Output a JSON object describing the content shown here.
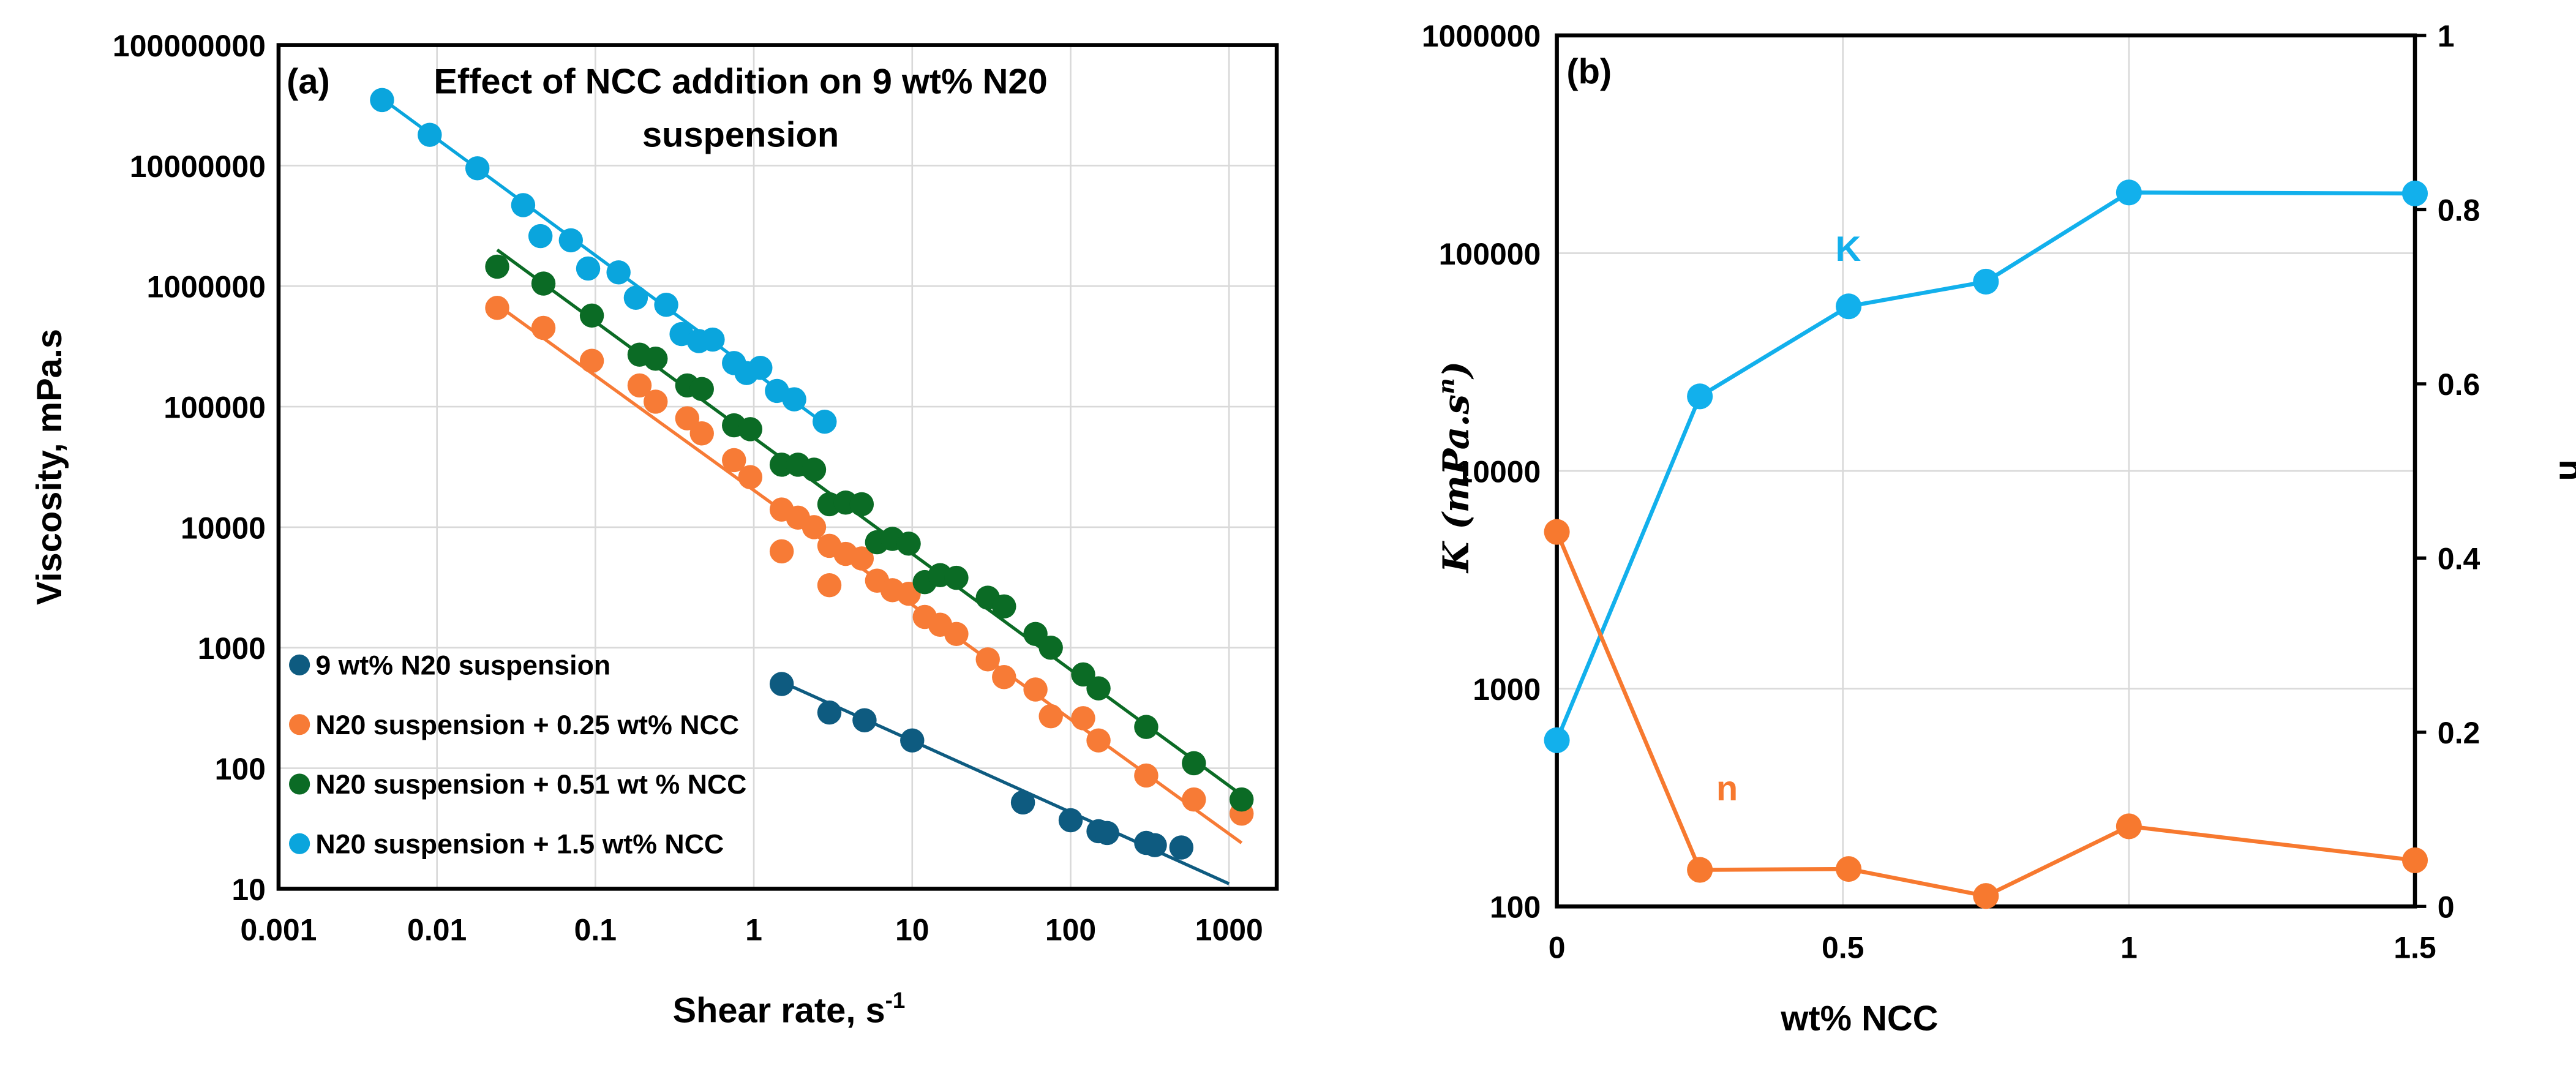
{
  "chart_data": [
    {
      "type": "scatter",
      "panel_label": "(a)",
      "title": "Effect of NCC addition on 9 wt% N20 suspension",
      "title_lines": [
        "Effect of NCC addition on 9 wt% N20",
        "suspension"
      ],
      "xlabel": "Shear rate, s",
      "xlabel_sup": "-1",
      "ylabel": "Viscosity, mPa.s",
      "xscale": "log",
      "yscale": "log",
      "xlim": [
        0.001,
        2000
      ],
      "ylim": [
        10,
        100000000
      ],
      "xticks": [
        "0.001",
        "0.01",
        "0.1",
        "1",
        "10",
        "100",
        "1000"
      ],
      "yticks": [
        "10",
        "100",
        "1000",
        "10000",
        "100000",
        "1000000",
        "10000000",
        "100000000"
      ],
      "grid": true,
      "legend": "bottom-left",
      "series": [
        {
          "name": "9 wt% N20 suspension",
          "color": "#0e5b80",
          "points": [
            [
              1.5,
              500
            ],
            [
              3,
              290
            ],
            [
              5,
              250
            ],
            [
              10,
              170
            ],
            [
              50,
              52
            ],
            [
              100,
              37
            ],
            [
              150,
              30
            ],
            [
              170,
              29
            ],
            [
              300,
              24
            ],
            [
              340,
              23
            ],
            [
              500,
              22
            ]
          ],
          "fit": [
            [
              1.5,
              520
            ],
            [
              1000,
              11
            ]
          ]
        },
        {
          "name": "N20 suspension + 0.25 wt% NCC",
          "color": "#f77b36",
          "points": [
            [
              0.024,
              660000
            ],
            [
              0.047,
              450000
            ],
            [
              0.095,
              240000
            ],
            [
              0.19,
              150000
            ],
            [
              0.24,
              110000
            ],
            [
              0.38,
              80000
            ],
            [
              0.47,
              60000
            ],
            [
              0.75,
              36000
            ],
            [
              0.95,
              26000
            ],
            [
              1.5,
              14000
            ],
            [
              1.5,
              6300
            ],
            [
              1.9,
              12000
            ],
            [
              2.4,
              10000
            ],
            [
              3,
              7000
            ],
            [
              3,
              3300
            ],
            [
              3.8,
              6000
            ],
            [
              4.8,
              5500
            ],
            [
              6,
              3600
            ],
            [
              7.5,
              3000
            ],
            [
              9.5,
              2800
            ],
            [
              12,
              1800
            ],
            [
              15,
              1550
            ],
            [
              19,
              1300
            ],
            [
              30,
              800
            ],
            [
              38,
              570
            ],
            [
              60,
              450
            ],
            [
              75,
              270
            ],
            [
              120,
              260
            ],
            [
              150,
              170
            ],
            [
              300,
              87
            ],
            [
              600,
              55
            ],
            [
              1200,
              42
            ]
          ],
          "fit": [
            [
              0.024,
              700000
            ],
            [
              1200,
              24
            ]
          ]
        },
        {
          "name": "N20 suspension + 0.51 wt % NCC",
          "color": "#0b6b25",
          "points": [
            [
              0.024,
              1450000
            ],
            [
              0.047,
              1050000
            ],
            [
              0.095,
              570000
            ],
            [
              0.19,
              270000
            ],
            [
              0.24,
              250000
            ],
            [
              0.38,
              150000
            ],
            [
              0.47,
              140000
            ],
            [
              0.75,
              70000
            ],
            [
              0.95,
              65000
            ],
            [
              1.5,
              33000
            ],
            [
              1.9,
              33000
            ],
            [
              2.4,
              30000
            ],
            [
              3,
              15500
            ],
            [
              3.8,
              16000
            ],
            [
              4.8,
              15500
            ],
            [
              6,
              7500
            ],
            [
              7.5,
              8000
            ],
            [
              9.5,
              7300
            ],
            [
              12,
              3500
            ],
            [
              15,
              4000
            ],
            [
              19,
              3800
            ],
            [
              30,
              2600
            ],
            [
              38,
              2200
            ],
            [
              60,
              1300
            ],
            [
              75,
              1000
            ],
            [
              120,
              600
            ],
            [
              150,
              460
            ],
            [
              300,
              220
            ],
            [
              600,
              110
            ],
            [
              1200,
              55
            ]
          ],
          "fit": [
            [
              0.024,
              2000000
            ],
            [
              1200,
              60
            ]
          ]
        },
        {
          "name": "N20 suspension + 1.5 wt% NCC",
          "color": "#0aa5dd",
          "points": [
            [
              0.0045,
              35000000
            ],
            [
              0.009,
              18000000
            ],
            [
              0.018,
              9500000
            ],
            [
              0.035,
              4700000
            ],
            [
              0.045,
              2600000
            ],
            [
              0.07,
              2400000
            ],
            [
              0.09,
              1400000
            ],
            [
              0.14,
              1300000
            ],
            [
              0.18,
              800000
            ],
            [
              0.28,
              700000
            ],
            [
              0.35,
              400000
            ],
            [
              0.45,
              350000
            ],
            [
              0.55,
              360000
            ],
            [
              0.75,
              230000
            ],
            [
              0.9,
              190000
            ],
            [
              1.1,
              210000
            ],
            [
              1.4,
              135000
            ],
            [
              1.8,
              115000
            ],
            [
              2.8,
              75000
            ]
          ],
          "fit": [
            [
              0.0045,
              36000000
            ],
            [
              2.8,
              72000
            ]
          ]
        }
      ]
    },
    {
      "type": "line",
      "panel_label": "(b)",
      "xlabel": "wt% NCC",
      "ylabel": "K (mPa.s",
      "ylabel_sup": "n",
      "ylabel_end": ")",
      "y2label": "n",
      "xlim": [
        0,
        1.5
      ],
      "ylim": [
        100,
        1000000
      ],
      "y2lim": [
        0,
        1
      ],
      "yscale": "log",
      "xticks": [
        "0",
        "0.5",
        "1",
        "1.5"
      ],
      "yticks": [
        "100",
        "1000",
        "10000",
        "100000",
        "1000000"
      ],
      "y2ticks": [
        "0",
        "0.2",
        "0.4",
        "0.6",
        "0.8",
        "1"
      ],
      "grid": true,
      "series": [
        {
          "name": "K",
          "axis": "left",
          "color": "#12b0ec",
          "x": [
            0,
            0.25,
            0.51,
            0.75,
            1,
            1.5
          ],
          "values": [
            580,
            22000,
            57000,
            74000,
            190000,
            188000
          ]
        },
        {
          "name": "n",
          "axis": "right",
          "color": "#f7792f",
          "x": [
            0,
            0.25,
            0.51,
            0.75,
            1,
            1.5
          ],
          "values": [
            0.43,
            0.042,
            0.043,
            0.012,
            0.092,
            0.053
          ]
        }
      ]
    }
  ]
}
